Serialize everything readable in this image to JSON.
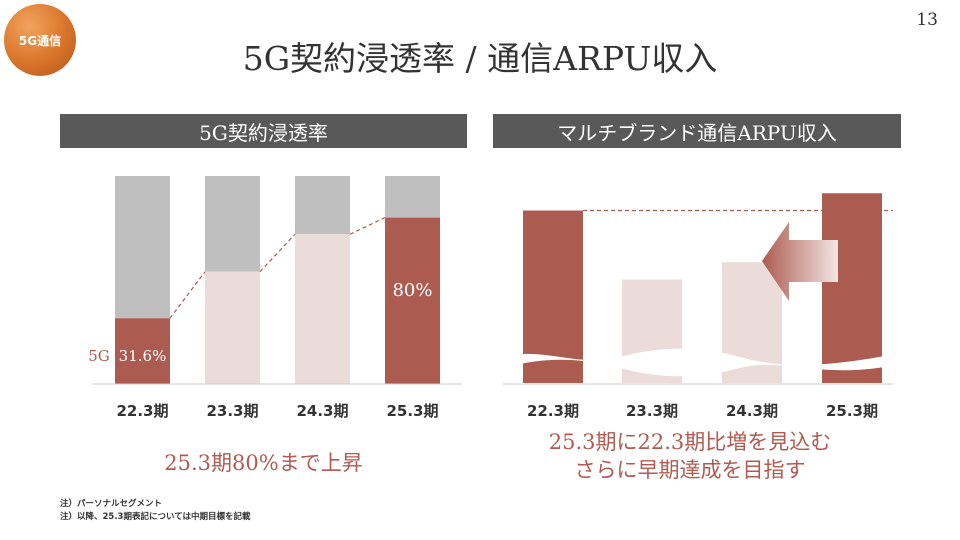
{
  "badge": "5G通信",
  "page_number": "13",
  "title": "5G契約浸透率 / 通信ARPU収入",
  "colors": {
    "accent": "#ac5b50",
    "pale": "#ecdcd9",
    "gray": "#bfbfbf",
    "header": "#595959",
    "caption": "#b25a50"
  },
  "chart_data": [
    {
      "type": "bar",
      "title": "5G契約浸透率",
      "categories": [
        "22.3期",
        "23.3期",
        "24.3期",
        "25.3期"
      ],
      "values": [
        31.6,
        54,
        72,
        80
      ],
      "ylim": [
        0,
        100
      ],
      "series_label": "5G",
      "data_labels": [
        "31.6%",
        "",
        "",
        "80%"
      ],
      "bar_styles": [
        "actual",
        "target",
        "target",
        "actual"
      ],
      "caption": "25.3期80%まで上昇"
    },
    {
      "type": "bar",
      "title": "マルチブランド通信ARPU収入",
      "categories": [
        "22.3期",
        "23.3期",
        "24.3期",
        "25.3期"
      ],
      "values": [
        100,
        88,
        91,
        103
      ],
      "ylim": [
        70,
        106
      ],
      "axis_break": true,
      "reference_line": 100,
      "bar_styles": [
        "actual",
        "target",
        "target",
        "actual"
      ],
      "caption_lines": [
        "25.3期に22.3期比増を見込む",
        "さらに早期達成を目指す"
      ]
    }
  ],
  "notes": [
    "注）パーソナルセグメント",
    "注）以降、25.3期表記については中期目標を記載"
  ]
}
